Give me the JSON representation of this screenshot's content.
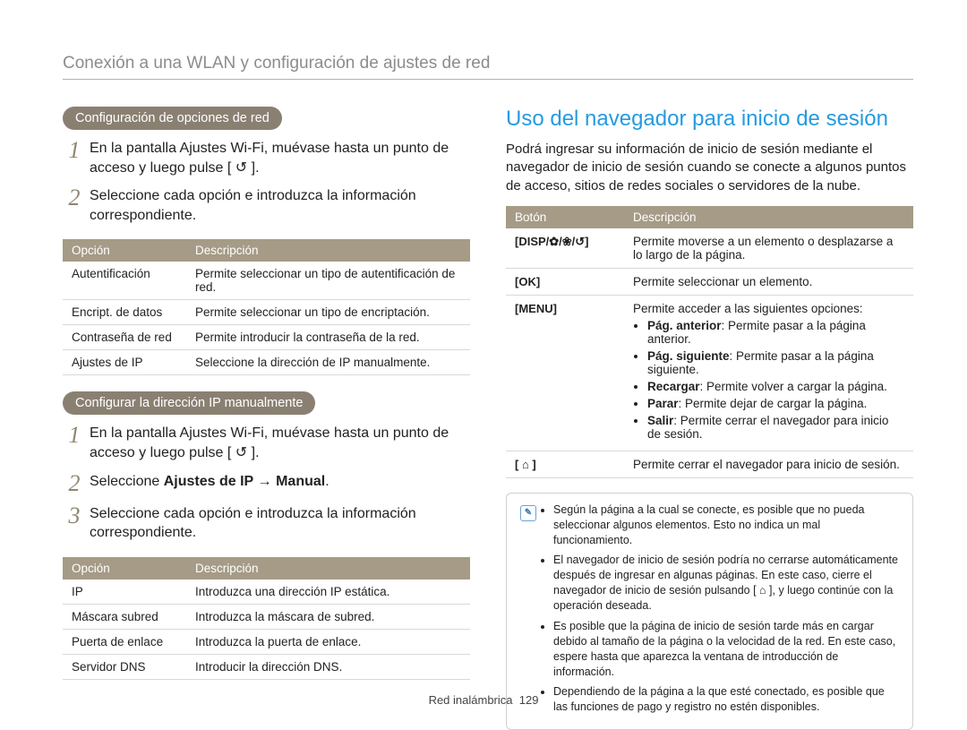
{
  "colors": {
    "accent_khaki": "#a59b86",
    "pill_bg": "#8a8072",
    "blue_heading": "#259be0",
    "step_number": "#8f8571",
    "header_gray": "#8c8c8c",
    "border_light": "#d9d9d9",
    "note_border": "#cfcfcf"
  },
  "header": "Conexión a una WLAN y configuración de ajustes de red",
  "left": {
    "pill1": "Configuración de opciones de red",
    "steps1": [
      "En la pantalla Ajustes Wi-Fi, muévase hasta un punto de acceso y luego pulse [ ↺ ].",
      "Seleccione cada opción e introduzca la información correspondiente."
    ],
    "table1": {
      "headers": [
        "Opción",
        "Descripción"
      ],
      "rows": [
        [
          "Autentificación",
          "Permite seleccionar un tipo de autentificación de red."
        ],
        [
          "Encript. de datos",
          "Permite seleccionar un tipo de encriptación."
        ],
        [
          "Contraseña de red",
          "Permite introducir la contraseña de la red."
        ],
        [
          "Ajustes de IP",
          "Seleccione la dirección de IP manualmente."
        ]
      ]
    },
    "pill2": "Configurar la dirección IP manualmente",
    "steps2": [
      "En la pantalla Ajustes Wi-Fi, muévase hasta un punto de acceso y luego pulse [ ↺ ].",
      "Seleccione <b>Ajustes de IP</b> → <b>Manual</b>.",
      "Seleccione cada opción e introduzca la información correspondiente."
    ],
    "table2": {
      "headers": [
        "Opción",
        "Descripción"
      ],
      "rows": [
        [
          "IP",
          "Introduzca una dirección IP estática."
        ],
        [
          "Máscara subred",
          "Introduzca la máscara de subred."
        ],
        [
          "Puerta de enlace",
          "Introduzca la puerta de enlace."
        ],
        [
          "Servidor DNS",
          "Introducir la dirección DNS."
        ]
      ]
    }
  },
  "right": {
    "heading": "Uso del navegador para inicio de sesión",
    "para": "Podrá ingresar su información de inicio de sesión mediante el navegador de inicio de sesión cuando se conecte a algunos puntos de acceso, sitios de redes sociales o servidores de la nube.",
    "btable": {
      "headers": [
        "Botón",
        "Descripción"
      ],
      "rows": [
        {
          "button": "[DISP/✿/❀/↺]",
          "desc": "Permite moverse a un elemento o desplazarse a lo largo de la página."
        },
        {
          "button": "[OK]",
          "desc": "Permite seleccionar un elemento."
        },
        {
          "button": "[MENU]",
          "desc_intro": "Permite acceder a las siguientes opciones:",
          "items": [
            "<b>Pág. anterior</b>: Permite pasar a la página anterior.",
            "<b>Pág. siguiente</b>: Permite pasar a la página siguiente.",
            "<b>Recargar</b>: Permite volver a cargar la página.",
            "<b>Parar</b>: Permite dejar de cargar la página.",
            "<b>Salir</b>: Permite cerrar el navegador para inicio de sesión."
          ]
        },
        {
          "button": "[ ⌂ ]",
          "desc": "Permite cerrar el navegador para inicio de sesión."
        }
      ]
    },
    "notes": [
      "Según la página a la cual se conecte, es posible que no pueda seleccionar algunos elementos. Esto no indica un mal funcionamiento.",
      "El navegador de inicio de sesión podría no cerrarse automáticamente después de ingresar en algunas páginas. En este caso, cierre el navegador de inicio de sesión pulsando [ ⌂ ], y luego continúe con la operación deseada.",
      "Es posible que la página de inicio de sesión tarde más en cargar debido al tamaño de la página o la velocidad de la red. En este caso, espere hasta que aparezca la ventana de introducción de información.",
      "Dependiendo de la página a la que esté conectado, es posible que las funciones de pago y registro no estén disponibles."
    ]
  },
  "footer": {
    "section": "Red inalámbrica",
    "page": "129"
  }
}
